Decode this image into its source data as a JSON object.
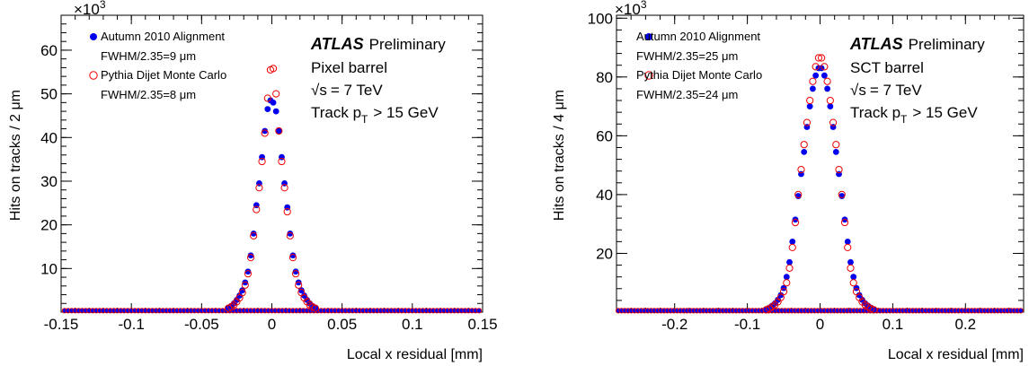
{
  "chart_data": [
    {
      "type": "scatter",
      "panel": "left",
      "xlabel": "Local x residual [mm]",
      "ylabel": "Hits on tracks / 2 μm",
      "y_multiplier": "×10",
      "y_multiplier_exp": "3",
      "xlim": [
        -0.15,
        0.15
      ],
      "ylim": [
        0,
        68
      ],
      "xticks": [
        -0.15,
        -0.1,
        -0.05,
        0,
        0.05,
        0.1,
        0.15
      ],
      "xtick_labels": [
        "-0.15",
        "-0.1",
        "-0.05",
        "0",
        "0.05",
        "0.1",
        "0.15"
      ],
      "yticks": [
        10,
        20,
        30,
        40,
        50,
        60
      ],
      "ytick_labels": [
        "10",
        "20",
        "30",
        "40",
        "50",
        "60"
      ],
      "text": {
        "atlas": "ATLAS",
        "preliminary": "Preliminary",
        "detector": "Pixel barrel",
        "energy_sqrt": "√s",
        "energy_rest": "= 7 TeV",
        "track_prefix": "Track p",
        "track_sub": "T",
        "track_suffix": "> 15 GeV"
      },
      "legend": [
        {
          "label": "Autumn 2010 Alignment",
          "sublabel": "FWHM/2.35=9 μm",
          "marker": "filled-circle",
          "color": "#0000ee"
        },
        {
          "label": "Pythia Dijet Monte Carlo",
          "sublabel": "FWHM/2.35=8 μm",
          "marker": "open-circle",
          "color": "#ee0000"
        }
      ],
      "series": [
        {
          "name": "Autumn 2010 Alignment",
          "x": [
            -0.031,
            -0.029,
            -0.027,
            -0.025,
            -0.023,
            -0.021,
            -0.019,
            -0.017,
            -0.015,
            -0.013,
            -0.011,
            -0.009,
            -0.007,
            -0.005,
            -0.003,
            -0.001,
            0.001,
            0.003,
            0.005,
            0.007,
            0.009,
            0.011,
            0.013,
            0.015,
            0.017,
            0.019,
            0.021,
            0.023,
            0.025,
            0.027,
            0.029,
            0.031
          ],
          "y": [
            1.0,
            1.4,
            2.0,
            2.8,
            3.8,
            5.0,
            6.8,
            9.3,
            13.0,
            18.0,
            24.5,
            29.5,
            35.5,
            41.5,
            46.5,
            48.5,
            48.0,
            46.0,
            41.5,
            35.5,
            29.5,
            24.0,
            18.0,
            13.0,
            9.3,
            6.8,
            5.0,
            3.8,
            2.8,
            2.0,
            1.4,
            1.0
          ]
        },
        {
          "name": "Pythia Dijet Monte Carlo",
          "x": [
            -0.031,
            -0.029,
            -0.027,
            -0.025,
            -0.023,
            -0.021,
            -0.019,
            -0.017,
            -0.015,
            -0.013,
            -0.011,
            -0.009,
            -0.007,
            -0.005,
            -0.003,
            -0.001,
            0.001,
            0.003,
            0.005,
            0.007,
            0.009,
            0.011,
            0.013,
            0.015,
            0.017,
            0.019,
            0.021,
            0.023,
            0.025,
            0.027,
            0.029,
            0.031
          ],
          "y": [
            0.9,
            1.2,
            1.7,
            2.4,
            3.3,
            4.5,
            6.2,
            8.8,
            12.5,
            17.5,
            23.5,
            28.5,
            34.5,
            41.0,
            49.0,
            55.5,
            55.8,
            50.0,
            41.5,
            34.5,
            28.5,
            23.0,
            17.5,
            12.5,
            8.8,
            6.2,
            4.5,
            3.3,
            2.4,
            1.7,
            1.2,
            0.9
          ]
        }
      ],
      "baseline": {
        "value": 0.35,
        "x_range": [
          -0.15,
          0.15
        ]
      }
    },
    {
      "type": "scatter",
      "panel": "right",
      "xlabel": "Local x residual [mm]",
      "ylabel": "Hits on tracks / 4 μm",
      "y_multiplier": "×10",
      "y_multiplier_exp": "3",
      "xlim": [
        -0.28,
        0.28
      ],
      "ylim": [
        0,
        101
      ],
      "xticks": [
        -0.2,
        -0.1,
        0,
        0.1,
        0.2
      ],
      "xtick_labels": [
        "-0.2",
        "-0.1",
        "0",
        "0.1",
        "0.2"
      ],
      "yticks": [
        20,
        40,
        60,
        80,
        100
      ],
      "ytick_labels": [
        "20",
        "40",
        "60",
        "80",
        "100"
      ],
      "text": {
        "atlas": "ATLAS",
        "preliminary": "Preliminary",
        "detector": "SCT barrel",
        "energy_sqrt": "√s",
        "energy_rest": "= 7 TeV",
        "track_prefix": "Track p",
        "track_sub": "T",
        "track_suffix": "> 15 GeV"
      },
      "legend": [
        {
          "label": "Autumn 2010 Alignment",
          "sublabel": "FWHM/2.35=25 μm",
          "marker": "filled-circle",
          "color": "#0000ee"
        },
        {
          "label": "Pythia Dijet Monte Carlo",
          "sublabel": "FWHM/2.35=24 μm",
          "marker": "open-circle",
          "color": "#ee0000"
        }
      ],
      "series": [
        {
          "name": "Autumn 2010 Alignment",
          "x": [
            -0.074,
            -0.07,
            -0.066,
            -0.062,
            -0.058,
            -0.054,
            -0.05,
            -0.046,
            -0.042,
            -0.038,
            -0.034,
            -0.03,
            -0.026,
            -0.022,
            -0.018,
            -0.014,
            -0.01,
            -0.006,
            -0.002,
            0.002,
            0.006,
            0.01,
            0.014,
            0.018,
            0.022,
            0.026,
            0.03,
            0.034,
            0.038,
            0.042,
            0.046,
            0.05,
            0.054,
            0.058,
            0.062,
            0.066,
            0.07,
            0.074
          ],
          "y": [
            1.0,
            1.5,
            2.2,
            3.0,
            4.2,
            5.8,
            8.2,
            12.0,
            17.0,
            24.0,
            31.5,
            39.5,
            47.0,
            54.5,
            63.0,
            70.0,
            76.0,
            80.5,
            83.0,
            83.0,
            80.5,
            76.0,
            70.0,
            63.0,
            54.5,
            47.0,
            39.5,
            31.5,
            24.0,
            17.0,
            12.0,
            8.2,
            5.8,
            4.2,
            3.0,
            2.2,
            1.5,
            1.0
          ]
        },
        {
          "name": "Pythia Dijet Monte Carlo",
          "x": [
            -0.074,
            -0.07,
            -0.066,
            -0.062,
            -0.058,
            -0.054,
            -0.05,
            -0.046,
            -0.042,
            -0.038,
            -0.034,
            -0.03,
            -0.026,
            -0.022,
            -0.018,
            -0.014,
            -0.01,
            -0.006,
            -0.002,
            0.002,
            0.006,
            0.01,
            0.014,
            0.018,
            0.022,
            0.026,
            0.03,
            0.034,
            0.038,
            0.042,
            0.046,
            0.05,
            0.054,
            0.058,
            0.062,
            0.066,
            0.07,
            0.074
          ],
          "y": [
            0.8,
            1.2,
            1.8,
            2.5,
            3.5,
            5.0,
            7.0,
            10.0,
            15.0,
            22.0,
            30.5,
            40.0,
            48.5,
            57.0,
            64.5,
            72.0,
            78.5,
            83.5,
            86.5,
            86.5,
            83.5,
            78.5,
            72.0,
            64.5,
            57.0,
            48.5,
            40.0,
            30.5,
            22.0,
            15.0,
            10.0,
            7.0,
            5.0,
            3.5,
            2.5,
            1.8,
            1.2,
            0.8
          ]
        }
      ],
      "baseline": {
        "value": 0.5,
        "x_range": [
          -0.28,
          0.28
        ]
      }
    }
  ]
}
